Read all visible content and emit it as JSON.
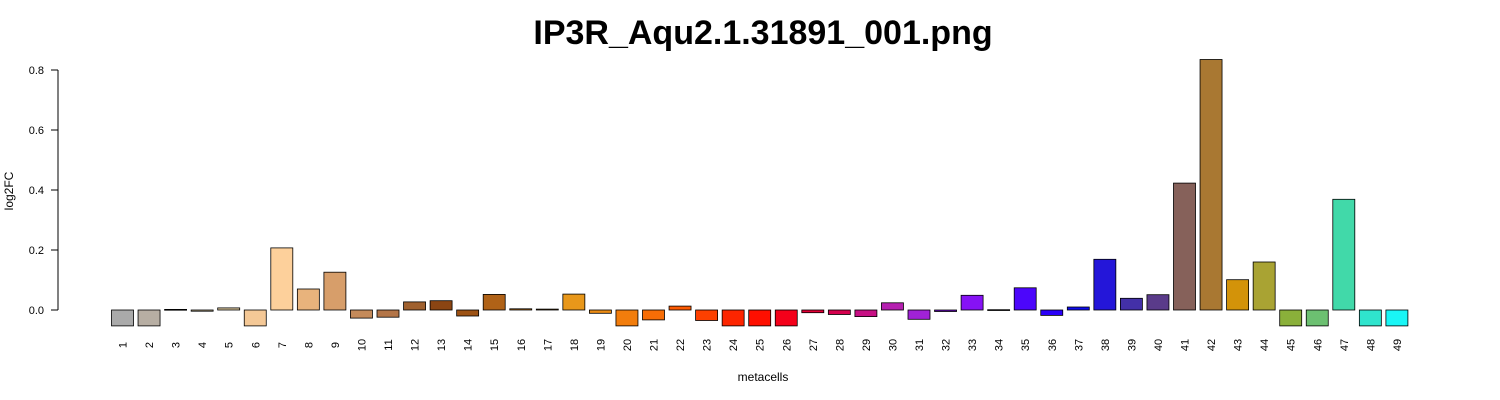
{
  "chart_data": {
    "type": "bar",
    "title": "IP3R_Aqu2.1.31891_001.png",
    "xlabel": "metacells",
    "ylabel": "log2FC",
    "ylim": [
      -0.055,
      0.84
    ],
    "yticks": [
      0.0,
      0.2,
      0.4,
      0.6,
      0.8
    ],
    "ytick_labels": [
      "0.0",
      "0.2",
      "0.4",
      "0.6",
      "0.8"
    ],
    "grid": false,
    "categories": [
      "1",
      "2",
      "3",
      "4",
      "5",
      "6",
      "7",
      "8",
      "9",
      "10",
      "11",
      "12",
      "13",
      "14",
      "15",
      "16",
      "17",
      "18",
      "19",
      "20",
      "21",
      "22",
      "23",
      "24",
      "25",
      "26",
      "27",
      "28",
      "29",
      "30",
      "31",
      "32",
      "33",
      "34",
      "35",
      "36",
      "37",
      "38",
      "39",
      "40",
      "41",
      "42",
      "43",
      "44",
      "45",
      "46",
      "47",
      "48",
      "49"
    ],
    "values": [
      -0.053,
      -0.053,
      0.002,
      -0.004,
      0.007,
      -0.053,
      0.207,
      0.07,
      0.126,
      -0.027,
      -0.024,
      0.027,
      0.031,
      -0.02,
      0.052,
      0.004,
      0.003,
      0.053,
      -0.011,
      -0.053,
      -0.033,
      0.013,
      -0.035,
      -0.053,
      -0.053,
      -0.053,
      -0.009,
      -0.015,
      -0.022,
      0.024,
      -0.031,
      -0.005,
      0.049,
      0.001,
      0.074,
      -0.018,
      0.01,
      0.169,
      0.039,
      0.051,
      0.423,
      0.835,
      0.101,
      0.16,
      -0.053,
      -0.053,
      0.369,
      -0.053,
      -0.053
    ],
    "colors": [
      "#aaaaaa",
      "#b7aea3",
      "#c4b4a0",
      "#cfbd96",
      "#dcc79e",
      "#f4c896",
      "#fdd09b",
      "#e8b37c",
      "#d79e6a",
      "#c48a5a",
      "#b37548",
      "#a0612f",
      "#8b4513",
      "#9d5214",
      "#b06217",
      "#c37418",
      "#d5861a",
      "#e8971a",
      "#ec8c14",
      "#f27d0c",
      "#f76d06",
      "#fc5a02",
      "#fd4000",
      "#fd2500",
      "#fe0f00",
      "#f4001a",
      "#e30036",
      "#d6004e",
      "#c70f84",
      "#b520b0",
      "#a022d6",
      "#6a06c8",
      "#8612f5",
      "#6f0af7",
      "#4c06fb",
      "#2a00f8",
      "#0f0ded",
      "#2416d9",
      "#4330a8",
      "#5a3b8a",
      "#86615a",
      "#a97832",
      "#d39309",
      "#a9a333",
      "#8ab03a",
      "#6cc071",
      "#41d9a9",
      "#2fe4cd",
      "#19f6f6"
    ]
  }
}
